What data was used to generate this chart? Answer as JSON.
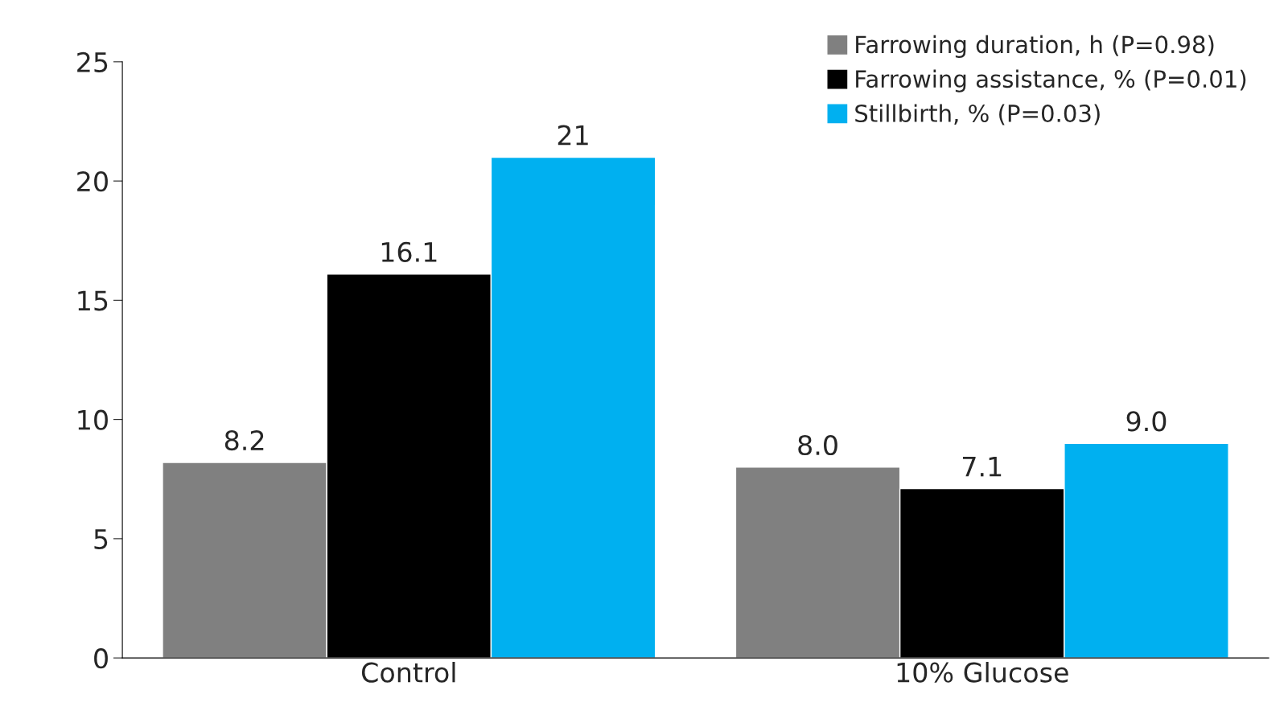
{
  "chart_data": {
    "type": "bar",
    "categories": [
      "Control",
      "10% Glucose"
    ],
    "series": [
      {
        "name": "Farrowing duration, h (P=0.98)",
        "color": "#808080",
        "values": [
          8.2,
          8.0
        ],
        "value_labels": [
          "8.2",
          "8.0"
        ]
      },
      {
        "name": "Farrowing assistance, % (P=0.01)",
        "color": "#000000",
        "values": [
          16.1,
          7.1
        ],
        "value_labels": [
          "16.1",
          "7.1"
        ]
      },
      {
        "name": "Stillbirth, % (P=0.03)",
        "color": "#00b0f0",
        "values": [
          21,
          9.0
        ],
        "value_labels": [
          "21",
          "9.0"
        ]
      }
    ],
    "ylim": [
      0,
      25
    ],
    "yticks": [
      0,
      5,
      10,
      15,
      20,
      25
    ],
    "grid": false,
    "legend": "top right"
  }
}
